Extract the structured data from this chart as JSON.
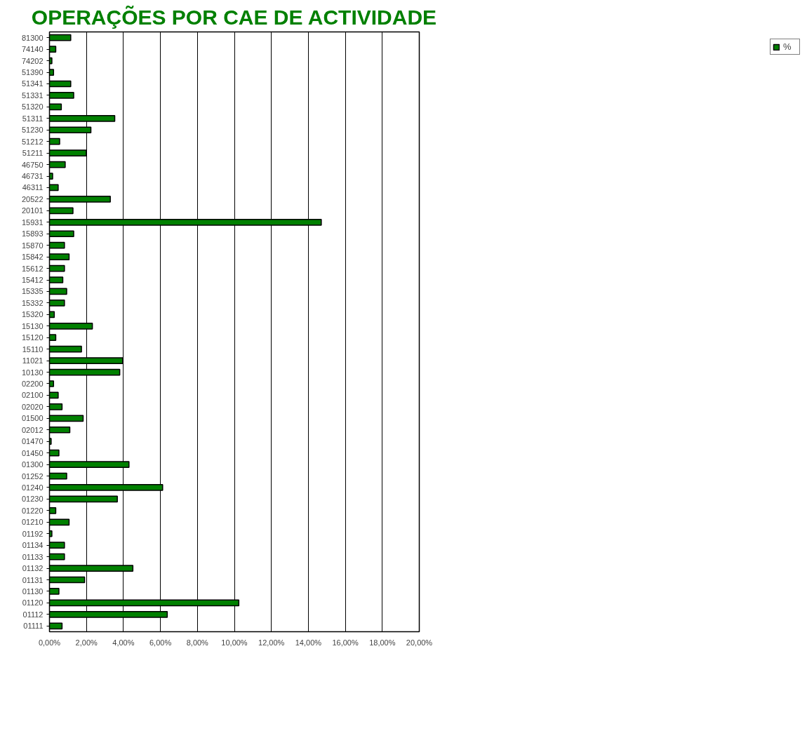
{
  "chart_data": {
    "type": "bar",
    "orientation": "horizontal",
    "title": "OPERAÇÕES POR CAE DE ACTIVIDADE",
    "categories": [
      "81300",
      "74140",
      "74202",
      "51390",
      "51341",
      "51331",
      "51320",
      "51311",
      "51230",
      "51212",
      "51211",
      "46750",
      "46731",
      "46311",
      "20522",
      "20101",
      "15931",
      "15893",
      "15870",
      "15842",
      "15612",
      "15412",
      "15335",
      "15332",
      "15320",
      "15130",
      "15120",
      "15110",
      "11021",
      "10130",
      "02200",
      "02100",
      "02020",
      "01500",
      "02012",
      "01470",
      "01450",
      "01300",
      "01252",
      "01240",
      "01230",
      "01220",
      "01210",
      "01192",
      "01134",
      "01133",
      "01132",
      "01131",
      "01130",
      "01120",
      "01112",
      "01111"
    ],
    "series": [
      {
        "name": "%",
        "color": "#008000",
        "values": [
          1.15,
          0.34,
          0.13,
          0.22,
          1.15,
          1.31,
          0.64,
          3.53,
          2.24,
          0.55,
          1.99,
          0.85,
          0.17,
          0.47,
          3.29,
          1.27,
          14.7,
          1.31,
          0.81,
          1.06,
          0.81,
          0.72,
          0.93,
          0.81,
          0.26,
          2.32,
          0.34,
          1.73,
          3.96,
          3.8,
          0.22,
          0.47,
          0.68,
          1.82,
          1.1,
          0.09,
          0.51,
          4.3,
          0.93,
          6.12,
          3.67,
          0.34,
          1.06,
          0.13,
          0.81,
          0.81,
          4.51,
          1.9,
          0.51,
          10.24,
          6.37,
          0.68
        ]
      }
    ],
    "xlim": [
      0,
      20
    ],
    "xticks": [
      {
        "value": 0,
        "label": "0,00%"
      },
      {
        "value": 2,
        "label": "2,00%"
      },
      {
        "value": 4,
        "label": "4,00%"
      },
      {
        "value": 6,
        "label": "6,00%"
      },
      {
        "value": 8,
        "label": "8,00%"
      },
      {
        "value": 10,
        "label": "10,00%"
      },
      {
        "value": 12,
        "label": "12,00%"
      },
      {
        "value": 14,
        "label": "14,00%"
      },
      {
        "value": 16,
        "label": "16,00%"
      },
      {
        "value": 18,
        "label": "18,00%"
      },
      {
        "value": 20,
        "label": "20,00%"
      }
    ],
    "grid": "x",
    "legend": "right"
  }
}
